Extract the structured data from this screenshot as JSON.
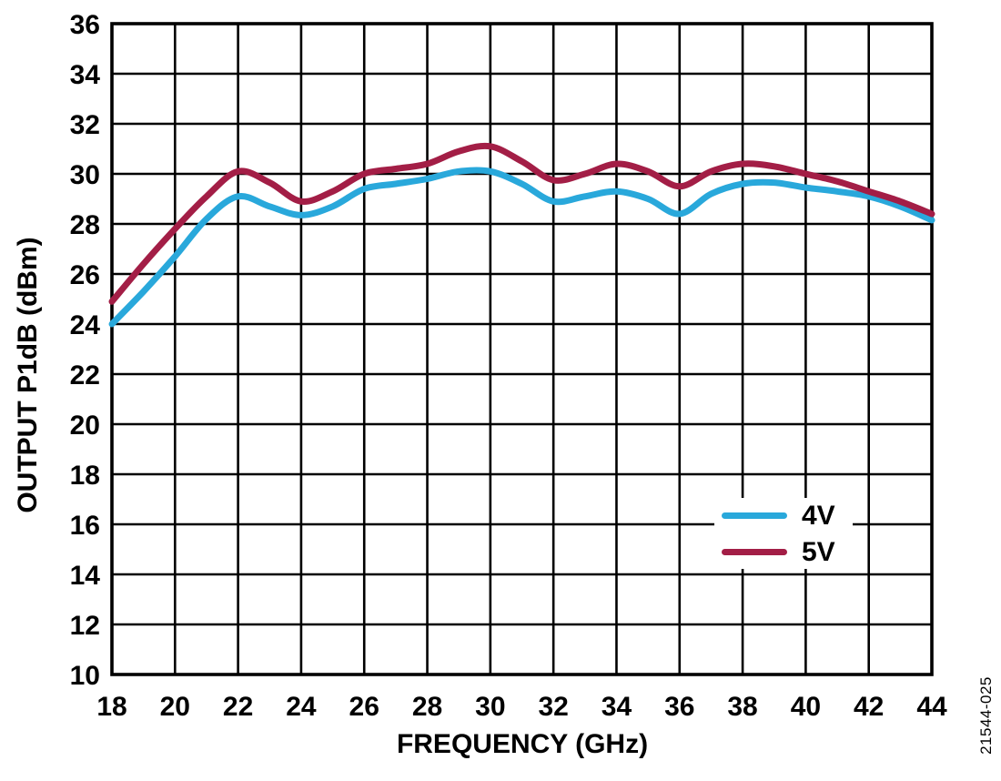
{
  "figure_number": "21544-025",
  "chart_data": {
    "type": "line",
    "title": "",
    "xlabel": "FREQUENCY (GHz)",
    "ylabel": "OUTPUT P1dB (dBm)",
    "xlim": [
      18,
      44
    ],
    "ylim": [
      10,
      36
    ],
    "x_ticks": [
      18,
      20,
      22,
      24,
      26,
      28,
      30,
      32,
      34,
      36,
      38,
      40,
      42,
      44
    ],
    "y_ticks": [
      10,
      12,
      14,
      16,
      18,
      20,
      22,
      24,
      26,
      28,
      30,
      32,
      34,
      36
    ],
    "grid": true,
    "grid_color": "#000000",
    "frame_color": "#000000",
    "legend_position": "inside lower-right",
    "x": [
      18,
      19,
      20,
      21,
      22,
      23,
      24,
      25,
      26,
      27,
      28,
      29,
      30,
      31,
      32,
      33,
      34,
      35,
      36,
      37,
      38,
      39,
      40,
      41,
      42,
      43,
      44
    ],
    "series": [
      {
        "name": "4V",
        "color": "#29A8DB",
        "values": [
          24.0,
          25.3,
          26.7,
          28.2,
          29.1,
          28.7,
          28.35,
          28.7,
          29.4,
          29.6,
          29.8,
          30.1,
          30.1,
          29.6,
          28.9,
          29.1,
          29.3,
          29.0,
          28.4,
          29.2,
          29.6,
          29.65,
          29.45,
          29.3,
          29.1,
          28.7,
          28.15
        ]
      },
      {
        "name": "5V",
        "color": "#A31E46",
        "values": [
          24.9,
          26.4,
          27.8,
          29.1,
          30.1,
          29.65,
          28.9,
          29.3,
          30.0,
          30.2,
          30.4,
          30.9,
          31.1,
          30.5,
          29.75,
          30.0,
          30.4,
          30.1,
          29.5,
          30.1,
          30.4,
          30.3,
          30.0,
          29.7,
          29.3,
          28.9,
          28.4
        ]
      }
    ]
  }
}
